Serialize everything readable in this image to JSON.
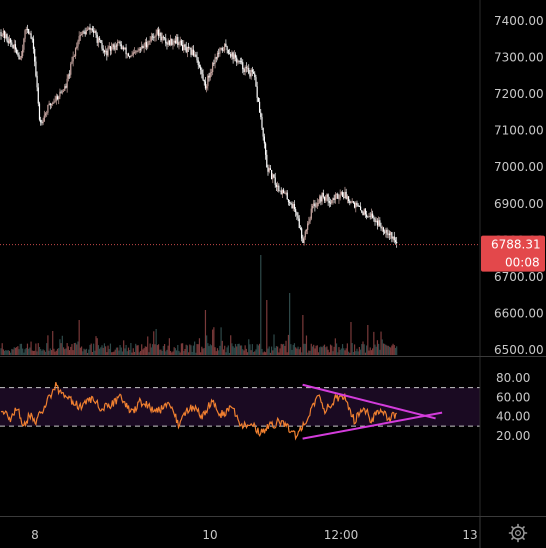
{
  "chart_data": [
    {
      "type": "candlestick",
      "title": "",
      "ylim": [
        6480,
        7440
      ],
      "y_ticks": [
        "7400.00",
        "7300.00",
        "7200.00",
        "7100.00",
        "7000.00",
        "6900.00",
        "6800.00",
        "6700.00",
        "6600.00",
        "6500.00"
      ],
      "y_tick_values": [
        7400,
        7300,
        7200,
        7100,
        7000,
        6900,
        6800,
        6700,
        6600,
        6500
      ],
      "x_ticks": [
        "8",
        "10",
        "12:00",
        "13"
      ],
      "last_price": "6788.31",
      "last_price_value": 6788.31,
      "countdown": "00:08",
      "price_path_anchors": [
        [
          0,
          7370
        ],
        [
          3,
          7340
        ],
        [
          6,
          7300
        ],
        [
          8,
          7390
        ],
        [
          10,
          7330
        ],
        [
          12,
          7120
        ],
        [
          15,
          7170
        ],
        [
          18,
          7200
        ],
        [
          20,
          7220
        ],
        [
          24,
          7360
        ],
        [
          28,
          7380
        ],
        [
          32,
          7310
        ],
        [
          36,
          7340
        ],
        [
          40,
          7300
        ],
        [
          44,
          7330
        ],
        [
          48,
          7370
        ],
        [
          51,
          7340
        ],
        [
          54,
          7350
        ],
        [
          57,
          7320
        ],
        [
          60,
          7310
        ],
        [
          63,
          7220
        ],
        [
          66,
          7300
        ],
        [
          69,
          7330
        ],
        [
          72,
          7300
        ],
        [
          75,
          7270
        ],
        [
          78,
          7250
        ],
        [
          80,
          7140
        ],
        [
          82,
          7000
        ],
        [
          85,
          6950
        ],
        [
          88,
          6920
        ],
        [
          91,
          6880
        ],
        [
          93,
          6800
        ],
        [
          96,
          6890
        ],
        [
          99,
          6920
        ],
        [
          102,
          6910
        ],
        [
          105,
          6930
        ],
        [
          108,
          6910
        ],
        [
          111,
          6880
        ],
        [
          114,
          6870
        ],
        [
          117,
          6840
        ],
        [
          120,
          6820
        ],
        [
          122,
          6790
        ]
      ],
      "volume_spikes": [
        [
          24,
          0.35
        ],
        [
          63,
          0.45
        ],
        [
          80,
          1.0
        ],
        [
          82,
          0.55
        ],
        [
          89,
          0.62
        ],
        [
          93,
          0.4
        ],
        [
          108,
          0.33
        ],
        [
          113,
          0.3
        ]
      ]
    },
    {
      "type": "line",
      "title": "",
      "ylim": [
        10,
        90
      ],
      "y_ticks": [
        "80.00",
        "60.00",
        "40.00",
        "20.00"
      ],
      "y_tick_values": [
        80,
        60,
        40,
        20
      ],
      "levels": [
        70,
        30
      ],
      "rsi_anchors": [
        [
          0,
          45
        ],
        [
          3,
          38
        ],
        [
          5,
          50
        ],
        [
          7,
          30
        ],
        [
          9,
          42
        ],
        [
          11,
          35
        ],
        [
          14,
          55
        ],
        [
          17,
          72
        ],
        [
          19,
          62
        ],
        [
          22,
          55
        ],
        [
          25,
          50
        ],
        [
          28,
          58
        ],
        [
          31,
          48
        ],
        [
          34,
          52
        ],
        [
          37,
          60
        ],
        [
          40,
          44
        ],
        [
          43,
          55
        ],
        [
          46,
          50
        ],
        [
          49,
          47
        ],
        [
          52,
          56
        ],
        [
          55,
          30
        ],
        [
          57,
          46
        ],
        [
          60,
          50
        ],
        [
          62,
          38
        ],
        [
          65,
          56
        ],
        [
          68,
          42
        ],
        [
          71,
          50
        ],
        [
          74,
          30
        ],
        [
          77,
          35
        ],
        [
          80,
          22
        ],
        [
          83,
          30
        ],
        [
          86,
          35
        ],
        [
          89,
          28
        ],
        [
          91,
          18
        ],
        [
          93,
          30
        ],
        [
          96,
          50
        ],
        [
          98,
          60
        ],
        [
          100,
          46
        ],
        [
          103,
          58
        ],
        [
          106,
          62
        ],
        [
          109,
          35
        ],
        [
          112,
          50
        ],
        [
          114,
          36
        ],
        [
          117,
          46
        ],
        [
          120,
          38
        ],
        [
          122,
          43
        ]
      ],
      "trendline_upper": [
        [
          93,
          73
        ],
        [
          134,
          38
        ]
      ],
      "trendline_lower": [
        [
          93,
          17
        ],
        [
          136,
          44
        ]
      ]
    }
  ],
  "colors": {
    "background": "#000000",
    "candle_up": "#c9a7a2",
    "candle_down": "#ffffff",
    "volume": "#7a3a3a",
    "rsi_line": "#f08030",
    "rsi_band": "#1a0a22",
    "trendline": "#d33cdb",
    "price_badge": "#e3484b",
    "price_line": "#c44a4a",
    "axis_text": "#c8c8c8",
    "divider": "#3a3a3a"
  }
}
